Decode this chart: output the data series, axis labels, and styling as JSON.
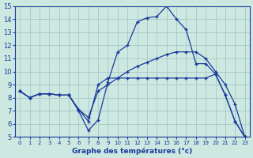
{
  "xlabel": "Graphe des températures (°c)",
  "background_color": "#cce8e0",
  "grid_color": "#aacccc",
  "line_color": "#1a3a9a",
  "xlim_min": -0.5,
  "xlim_max": 23.5,
  "ylim_min": 5,
  "ylim_max": 15,
  "yticks": [
    5,
    6,
    7,
    8,
    9,
    10,
    11,
    12,
    13,
    14,
    15
  ],
  "xticks": [
    0,
    1,
    2,
    3,
    4,
    5,
    6,
    7,
    8,
    9,
    10,
    11,
    12,
    13,
    14,
    15,
    16,
    17,
    18,
    19,
    20,
    21,
    22,
    23
  ],
  "line1_x": [
    0,
    1,
    2,
    3,
    4,
    5,
    6,
    7,
    8,
    9,
    10,
    11,
    12,
    13,
    14,
    15,
    16,
    17,
    18,
    19,
    20,
    21,
    22,
    23
  ],
  "line1_y": [
    8.5,
    8.0,
    8.3,
    8.3,
    8.2,
    8.2,
    7.0,
    5.5,
    6.3,
    9.2,
    11.5,
    12.0,
    13.8,
    14.1,
    14.2,
    15.0,
    14.0,
    13.2,
    10.6,
    10.6,
    9.8,
    8.2,
    6.2,
    5.0
  ],
  "line2_x": [
    0,
    1,
    2,
    3,
    4,
    5,
    6,
    7,
    8,
    9,
    10,
    11,
    12,
    13,
    14,
    15,
    16,
    17,
    18,
    19,
    20,
    21,
    22,
    23
  ],
  "line2_y": [
    8.5,
    8.0,
    8.3,
    8.3,
    8.2,
    8.2,
    7.1,
    6.5,
    8.5,
    9.0,
    9.5,
    10.0,
    10.4,
    10.7,
    11.0,
    11.3,
    11.5,
    11.5,
    11.5,
    11.0,
    10.0,
    9.0,
    7.5,
    5.0
  ],
  "line3_x": [
    0,
    1,
    2,
    3,
    4,
    5,
    6,
    7,
    8,
    9,
    10,
    11,
    12,
    13,
    14,
    15,
    16,
    17,
    18,
    19,
    20,
    21,
    22,
    23
  ],
  "line3_y": [
    8.5,
    8.0,
    8.3,
    8.3,
    8.2,
    8.2,
    7.1,
    6.2,
    9.0,
    9.5,
    9.5,
    9.5,
    9.5,
    9.5,
    9.5,
    9.5,
    9.5,
    9.5,
    9.5,
    9.5,
    9.8,
    8.2,
    6.2,
    5.0
  ]
}
